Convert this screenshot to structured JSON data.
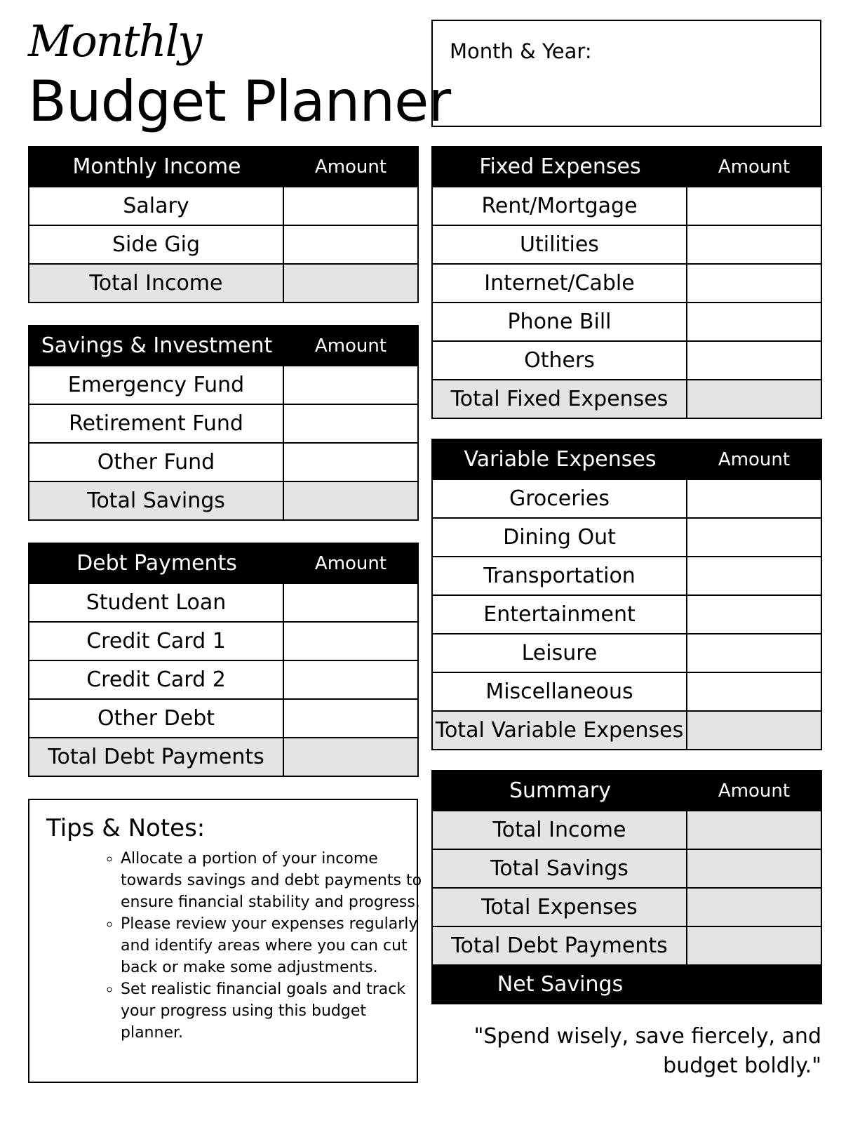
{
  "header": {
    "script_title": "Monthly",
    "title": "Budget Planner",
    "month_year_label": "Month & Year:"
  },
  "tables": {
    "income": {
      "title": "Monthly Income",
      "amount_label": "Amount",
      "rows": [
        "Salary",
        "Side Gig"
      ],
      "total": "Total Income"
    },
    "savings": {
      "title": "Savings & Investment",
      "amount_label": "Amount",
      "rows": [
        "Emergency Fund",
        "Retirement Fund",
        "Other Fund"
      ],
      "total": "Total Savings"
    },
    "debt": {
      "title": "Debt Payments",
      "amount_label": "Amount",
      "rows": [
        "Student Loan",
        "Credit Card 1",
        "Credit Card 2",
        "Other Debt"
      ],
      "total": "Total Debt Payments"
    },
    "fixed": {
      "title": "Fixed Expenses",
      "amount_label": "Amount",
      "rows": [
        "Rent/Mortgage",
        "Utilities",
        "Internet/Cable",
        "Phone Bill",
        "Others"
      ],
      "total": "Total Fixed Expenses"
    },
    "variable": {
      "title": "Variable Expenses",
      "amount_label": "Amount",
      "rows": [
        "Groceries",
        "Dining Out",
        "Transportation",
        "Entertainment",
        "Leisure",
        "Miscellaneous"
      ],
      "total": "Total Variable Expenses"
    },
    "summary": {
      "title": "Summary",
      "amount_label": "Amount",
      "totals": [
        "Total Income",
        "Total Savings",
        "Total Expenses",
        "Total Debt Payments"
      ],
      "net": "Net Savings"
    }
  },
  "tips": {
    "title": "Tips & Notes:",
    "items": [
      "Allocate a portion of your income towards savings and debt payments to ensure financial stability and progress.",
      "Please review your expenses regularly and identify areas where you can cut back or make some adjustments.",
      "Set realistic financial goals and track your progress using this budget planner."
    ]
  },
  "quote": "\"Spend wisely, save fiercely, and budget boldly.\"",
  "colors": {
    "header_bg": "#000000",
    "total_bg": "#e4e4e4"
  }
}
